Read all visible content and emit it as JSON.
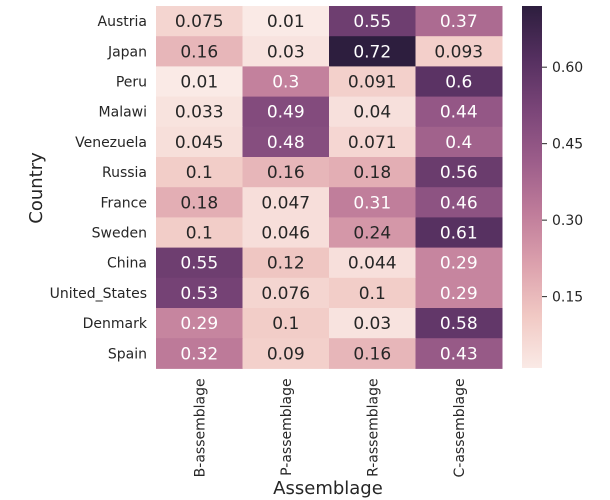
{
  "chart_data": {
    "type": "heatmap",
    "xlabel": "Assemblage",
    "ylabel": "Country",
    "columns": [
      "B-assemblage",
      "P-assemblage",
      "R-assemblage",
      "C-assemblage"
    ],
    "rows": [
      "Austria",
      "Japan",
      "Peru",
      "Malawi",
      "Venezuela",
      "Russia",
      "France",
      "Sweden",
      "China",
      "United_States",
      "Denmark",
      "Spain"
    ],
    "values": [
      [
        0.075,
        0.01,
        0.55,
        0.37
      ],
      [
        0.16,
        0.03,
        0.72,
        0.093
      ],
      [
        0.01,
        0.3,
        0.091,
        0.6
      ],
      [
        0.033,
        0.49,
        0.04,
        0.44
      ],
      [
        0.045,
        0.48,
        0.071,
        0.4
      ],
      [
        0.1,
        0.16,
        0.18,
        0.56
      ],
      [
        0.18,
        0.047,
        0.31,
        0.46
      ],
      [
        0.1,
        0.046,
        0.24,
        0.61
      ],
      [
        0.55,
        0.12,
        0.044,
        0.29
      ],
      [
        0.53,
        0.076,
        0.1,
        0.29
      ],
      [
        0.29,
        0.1,
        0.03,
        0.58
      ],
      [
        0.32,
        0.09,
        0.16,
        0.43
      ]
    ],
    "cell_labels": [
      [
        "0.075",
        "0.01",
        "0.55",
        "0.37"
      ],
      [
        "0.16",
        "0.03",
        "0.72",
        "0.093"
      ],
      [
        "0.01",
        "0.3",
        "0.091",
        "0.6"
      ],
      [
        "0.033",
        "0.49",
        "0.04",
        "0.44"
      ],
      [
        "0.045",
        "0.48",
        "0.071",
        "0.4"
      ],
      [
        "0.1",
        "0.16",
        "0.18",
        "0.56"
      ],
      [
        "0.18",
        "0.047",
        "0.31",
        "0.46"
      ],
      [
        "0.1",
        "0.046",
        "0.24",
        "0.61"
      ],
      [
        "0.55",
        "0.12",
        "0.044",
        "0.29"
      ],
      [
        "0.53",
        "0.076",
        "0.1",
        "0.29"
      ],
      [
        "0.29",
        "0.1",
        "0.03",
        "0.58"
      ],
      [
        "0.32",
        "0.09",
        "0.16",
        "0.43"
      ]
    ],
    "colorbar": {
      "range": [
        0.01,
        0.72
      ],
      "ticks": [
        0.15,
        0.3,
        0.45,
        0.6
      ],
      "tick_labels": [
        "0.15",
        "0.30",
        "0.45",
        "0.60"
      ]
    },
    "colormap": [
      "#faeae6",
      "#f1c9c4",
      "#dca1ad",
      "#bf7c9a",
      "#9c5d8a",
      "#7a4578",
      "#542f5f",
      "#2d1e3e"
    ],
    "label_colors": {
      "dark": "#262626",
      "light": "#ffffff"
    }
  }
}
